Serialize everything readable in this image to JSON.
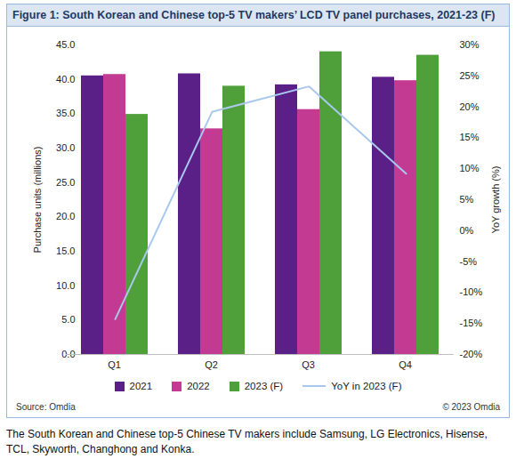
{
  "chart_data": {
    "type": "bar",
    "title": "Figure 1: South Korean and Chinese top-5 TV makers’ LCD TV panel purchases, 2021-23 (F)",
    "categories": [
      "Q1",
      "Q2",
      "Q3",
      "Q4"
    ],
    "series": [
      {
        "name": "2021",
        "color": "#5b1f88",
        "type": "bar",
        "values": [
          40.5,
          40.8,
          39.2,
          40.3
        ]
      },
      {
        "name": "2022",
        "color": "#c23a92",
        "type": "bar",
        "values": [
          40.7,
          32.8,
          35.6,
          39.8
        ]
      },
      {
        "name": "2023 (F)",
        "color": "#4fa03b",
        "type": "bar",
        "values": [
          34.9,
          39.0,
          44.0,
          43.5
        ]
      },
      {
        "name": "YoY in 2023 (F)",
        "color": "#a9c8ee",
        "type": "line",
        "axis": "y2",
        "values": [
          -14.3,
          19.2,
          23.3,
          9.2
        ]
      }
    ],
    "ylabel": "Purchase units (millions)",
    "y2label": "YoY growth (%)",
    "ylim": [
      0,
      45
    ],
    "yticks": [
      {
        "value": 0,
        "label": "0.0"
      },
      {
        "value": 5,
        "label": "5.0"
      },
      {
        "value": 10,
        "label": "10.0"
      },
      {
        "value": 15,
        "label": "15.0"
      },
      {
        "value": 20,
        "label": "20.0"
      },
      {
        "value": 25,
        "label": "25.0"
      },
      {
        "value": 30,
        "label": "30.0"
      },
      {
        "value": 35,
        "label": "35.0"
      },
      {
        "value": 40,
        "label": "40.0"
      },
      {
        "value": 45,
        "label": "45.0"
      }
    ],
    "y2lim": [
      -20,
      30
    ],
    "y2ticks": [
      {
        "value": -20,
        "label": "-20%"
      },
      {
        "value": -15,
        "label": "-15%"
      },
      {
        "value": -10,
        "label": "-10%"
      },
      {
        "value": -5,
        "label": "-5%"
      },
      {
        "value": 0,
        "label": "0%"
      },
      {
        "value": 5,
        "label": "5%"
      },
      {
        "value": 10,
        "label": "10%"
      },
      {
        "value": 15,
        "label": "15%"
      },
      {
        "value": 20,
        "label": "20%"
      },
      {
        "value": 25,
        "label": "25%"
      },
      {
        "value": 30,
        "label": "30%"
      }
    ],
    "grid": false,
    "legend": "bottom",
    "source": "Source: Omdia",
    "copyright": "© 2023 Omdia",
    "note": "The South Korean and Chinese top-5 Chinese TV makers include Samsung, LG Electronics, Hisense, TCL, Skyworth, Changhong and Konka."
  }
}
